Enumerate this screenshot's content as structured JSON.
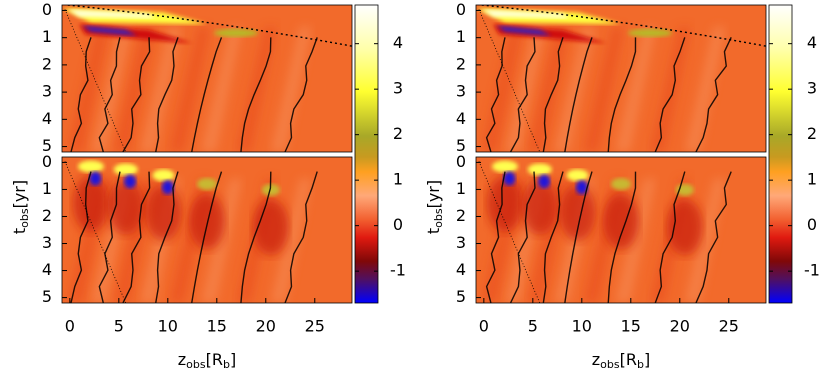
{
  "chart_data": [
    {
      "type": "heatmap",
      "panels": [
        {
          "xlim": [
            -0.8,
            28.8
          ],
          "ylim": [
            -0.2,
            5.2
          ],
          "y_inverted": true,
          "yticks": [
            0,
            1,
            2,
            3,
            4,
            5
          ]
        },
        {
          "xlim": [
            -0.8,
            28.8
          ],
          "ylim": [
            -0.2,
            5.2
          ],
          "y_inverted": true,
          "yticks": [
            0,
            1,
            2,
            3,
            4,
            5
          ],
          "xticks": [
            0,
            5,
            10,
            15,
            20,
            25
          ],
          "xlabel": {
            "text": "z",
            "sub": "obs",
            "suffix": "[R",
            "suffix_sub": "b",
            "end": "]"
          },
          "ylabel": {
            "text": "t",
            "sub": "obs",
            "suffix": "[yr]"
          }
        }
      ],
      "colorbar": {
        "lim": [
          -1.7,
          4.85
        ],
        "ticks": [
          4,
          3,
          2,
          1,
          0,
          -1
        ]
      }
    },
    {
      "type": "heatmap",
      "panels": [
        {
          "xlim": [
            -0.8,
            28.8
          ],
          "ylim": [
            -0.2,
            5.2
          ],
          "y_inverted": true,
          "yticks": [
            0,
            1,
            2,
            3,
            4,
            5
          ]
        },
        {
          "xlim": [
            -0.8,
            28.8
          ],
          "ylim": [
            -0.2,
            5.2
          ],
          "y_inverted": true,
          "yticks": [
            0,
            1,
            2,
            3,
            4,
            5
          ],
          "xticks": [
            0,
            5,
            10,
            15,
            20,
            25
          ],
          "xlabel": {
            "text": "z",
            "sub": "obs",
            "suffix": "[R",
            "suffix_sub": "b",
            "end": "]"
          },
          "ylabel": {
            "text": "t",
            "sub": "obs",
            "suffix": "[yr]"
          }
        }
      ],
      "colorbar": {
        "lim": [
          -1.7,
          4.85
        ],
        "ticks": [
          4,
          3,
          2,
          1,
          0,
          -1
        ]
      }
    }
  ]
}
